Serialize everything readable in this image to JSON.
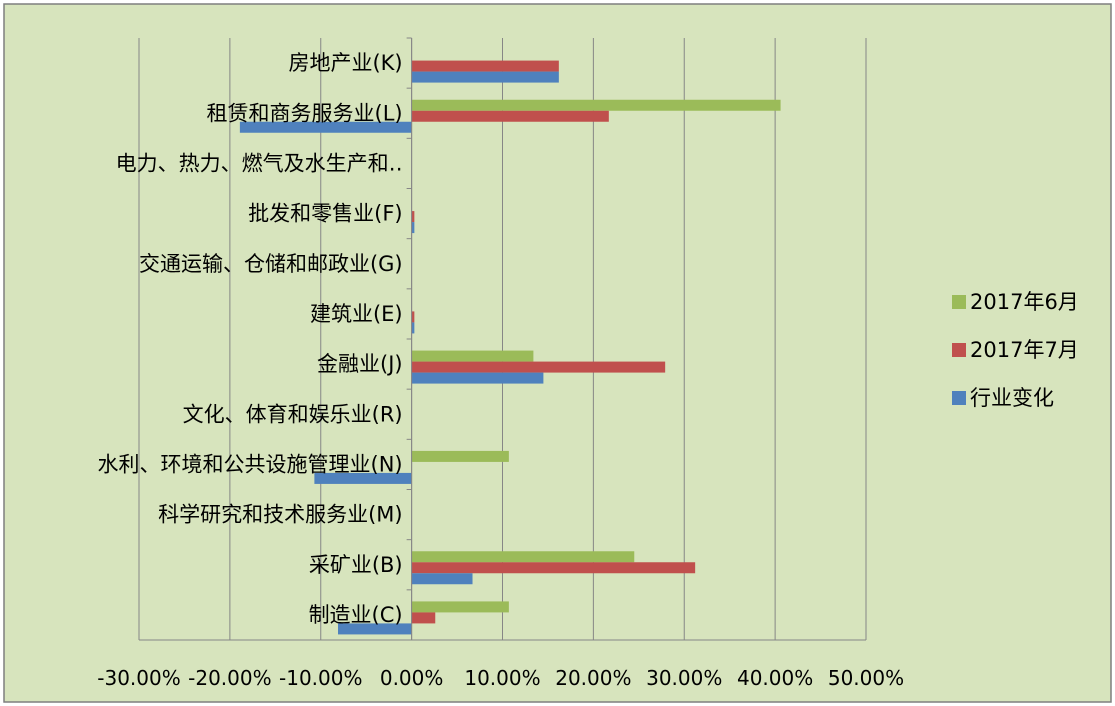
{
  "chart_data": {
    "type": "bar",
    "orientation": "horizontal",
    "categories": [
      "房地产业(K)",
      "租赁和商务服务业(L)",
      "电力、热力、燃气及水生产和‥",
      "批发和零售业(F)",
      "交通运输、仓储和邮政业(G)",
      "建筑业(E)",
      "金融业(J)",
      "文化、体育和娱乐业(R)",
      "水利、环境和公共设施管理业(N)",
      "科学研究和技术服务业(M)",
      "采矿业(B)",
      "制造业(C)"
    ],
    "series": [
      {
        "name": "2017年6月",
        "color": "#9BBB59",
        "values": [
          0,
          0.406,
          0,
          0,
          0,
          0,
          0.134,
          0,
          0.107,
          0,
          0.245,
          0.107
        ]
      },
      {
        "name": "2017年7月",
        "color": "#C0504D",
        "values": [
          0.162,
          0.217,
          0,
          0.003,
          0,
          0.003,
          0.279,
          0,
          0,
          0,
          0.312,
          0.026
        ]
      },
      {
        "name": "行业变化",
        "color": "#4F81BD",
        "values": [
          0.162,
          -0.189,
          0,
          0.003,
          0,
          0.003,
          0.145,
          0,
          -0.107,
          0,
          0.067,
          -0.081
        ]
      }
    ],
    "x_ticks": [
      "-30.00%",
      "-20.00%",
      "-10.00%",
      "0.00%",
      "10.00%",
      "20.00%",
      "30.00%",
      "40.00%",
      "50.00%"
    ],
    "xlim": [
      -0.3,
      0.5
    ],
    "grid": "vertical",
    "legend_position": "right",
    "background": "#D7E4BD",
    "border_color": "#7F7F7F",
    "grid_color": "#868686"
  }
}
